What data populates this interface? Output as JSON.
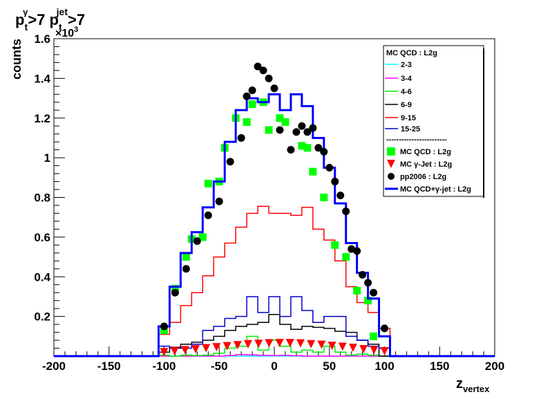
{
  "chart_data": {
    "type": "line",
    "title": {
      "main": "p",
      "sub1": "t",
      "sup1": "γ",
      "mid": ">7 p",
      "sub2": "t",
      "sup2": "jet",
      "end": ">7"
    },
    "xlabel": {
      "main": "z",
      "sub": "vertex"
    },
    "ylabel": "counts",
    "yexponent_label": "×10",
    "yexponent_power": "3",
    "xlim": [
      -200,
      200
    ],
    "ylim": [
      0,
      1.6
    ],
    "xticks": [
      "-200",
      "-150",
      "-100",
      "-50",
      "0",
      "50",
      "100",
      "150",
      "200"
    ],
    "yticks": [
      "0.2",
      "0.4",
      "0.6",
      "0.8",
      "1",
      "1.2",
      "1.4",
      "1.6"
    ],
    "bin_edges": [
      -105,
      -95,
      -85,
      -75,
      -65,
      -55,
      -45,
      -35,
      -25,
      -15,
      -5,
      5,
      15,
      25,
      35,
      45,
      55,
      65,
      75,
      85,
      95,
      105
    ],
    "series": [
      {
        "name": "2-3",
        "color": "#00ffff",
        "style": "hist",
        "values": [
          0,
          0,
          0,
          0,
          0,
          0,
          0,
          0,
          0,
          0,
          0,
          0,
          0,
          0,
          0,
          0,
          0,
          0,
          0,
          0,
          0
        ]
      },
      {
        "name": "3-4",
        "color": "#ff00ff",
        "style": "hist",
        "values": [
          0,
          0,
          0,
          0,
          0,
          0,
          0.003,
          0.008,
          0.006,
          0.004,
          0.003,
          0.004,
          0.002,
          0,
          0,
          0,
          0,
          0,
          0,
          0,
          0
        ]
      },
      {
        "name": "4-6",
        "color": "#00ee00",
        "style": "hist",
        "values": [
          0.005,
          0,
          0.005,
          0.003,
          0.005,
          0.015,
          0.04,
          0.05,
          0.1,
          0.03,
          0.08,
          0.05,
          0.02,
          0.03,
          0.02,
          0.05,
          0.02,
          0.005,
          0.01,
          0.005,
          0
        ]
      },
      {
        "name": "6-9",
        "color": "#000000",
        "style": "hist",
        "values": [
          0.02,
          0.045,
          0.06,
          0.07,
          0.08,
          0.1,
          0.13,
          0.15,
          0.16,
          0.17,
          0.21,
          0.16,
          0.135,
          0.15,
          0.145,
          0.14,
          0.125,
          0.12,
          0.08,
          0.06,
          0
        ]
      },
      {
        "name": "9-15",
        "color": "#ff0000",
        "style": "hist",
        "values": [
          0.11,
          0.17,
          0.255,
          0.32,
          0.405,
          0.5,
          0.57,
          0.65,
          0.72,
          0.755,
          0.72,
          0.72,
          0.71,
          0.75,
          0.64,
          0.585,
          0.48,
          0.35,
          0.27,
          0.22,
          0.14
        ]
      },
      {
        "name": "15-25",
        "color": "#0000cc",
        "style": "hist",
        "values": [
          0.05,
          0.04,
          0.04,
          0.06,
          0.13,
          0.15,
          0.19,
          0.2,
          0.3,
          0.22,
          0.3,
          0.2,
          0.3,
          0.23,
          0.17,
          0.2,
          0.2,
          0.1,
          0.08,
          0.05,
          0.04
        ]
      },
      {
        "name": "MC QCD : L2g",
        "color": "#00ff00",
        "style": "square",
        "values": [
          0.13,
          0.34,
          0.5,
          0.59,
          0.6,
          0.87,
          0.88,
          1.05,
          1.2,
          1.18,
          1.27,
          1.28,
          1.14,
          1.2,
          1.18,
          1.06,
          1.05,
          0.93,
          0.8,
          0.56,
          0.5,
          0.33,
          0.28,
          0.1
        ]
      },
      {
        "name": "MC γ-Jet : L2g",
        "color": "#ff0000",
        "style": "triangle",
        "values": [
          0.02,
          0.025,
          0.03,
          0.035,
          0.04,
          0.045,
          0.05,
          0.055,
          0.06,
          0.062,
          0.065,
          0.066,
          0.066,
          0.064,
          0.06,
          0.057,
          0.052,
          0.047,
          0.042,
          0.035,
          0.03,
          0.025
        ]
      },
      {
        "name": "pp2006 : L2g",
        "color": "#000000",
        "style": "circle",
        "x": [
          -100,
          -90,
          -80,
          -70,
          -60,
          -50,
          -40,
          -30,
          -25,
          -20,
          -15,
          -10,
          -5,
          0,
          5,
          15,
          20,
          25,
          30,
          35,
          40,
          45,
          50,
          55,
          60,
          65,
          70,
          75,
          80,
          85,
          90,
          100
        ],
        "values": [
          0.15,
          0.32,
          0.44,
          0.58,
          0.71,
          0.78,
          0.98,
          1.1,
          1.31,
          1.34,
          1.46,
          1.44,
          1.4,
          1.35,
          1.14,
          1.04,
          1.13,
          1.16,
          1.13,
          1.15,
          1.05,
          1.03,
          0.95,
          0.88,
          0.81,
          0.73,
          0.54,
          0.53,
          0.41,
          0.37,
          0.32,
          0.14
        ]
      },
      {
        "name": "MC QCD+γ-jet : L2g",
        "color": "#0000ff",
        "style": "hist",
        "values": [
          0.15,
          0.35,
          0.52,
          0.625,
          0.75,
          0.88,
          1.08,
          1.24,
          1.3,
          1.28,
          1.32,
          1.24,
          1.32,
          1.26,
          1.1,
          0.95,
          0.77,
          0.57,
          0.42,
          0.29,
          0.1
        ]
      }
    ],
    "legend": {
      "placement": "top-right",
      "title": "MC QCD : L2g",
      "separator": "------------------------"
    },
    "grid": false
  }
}
